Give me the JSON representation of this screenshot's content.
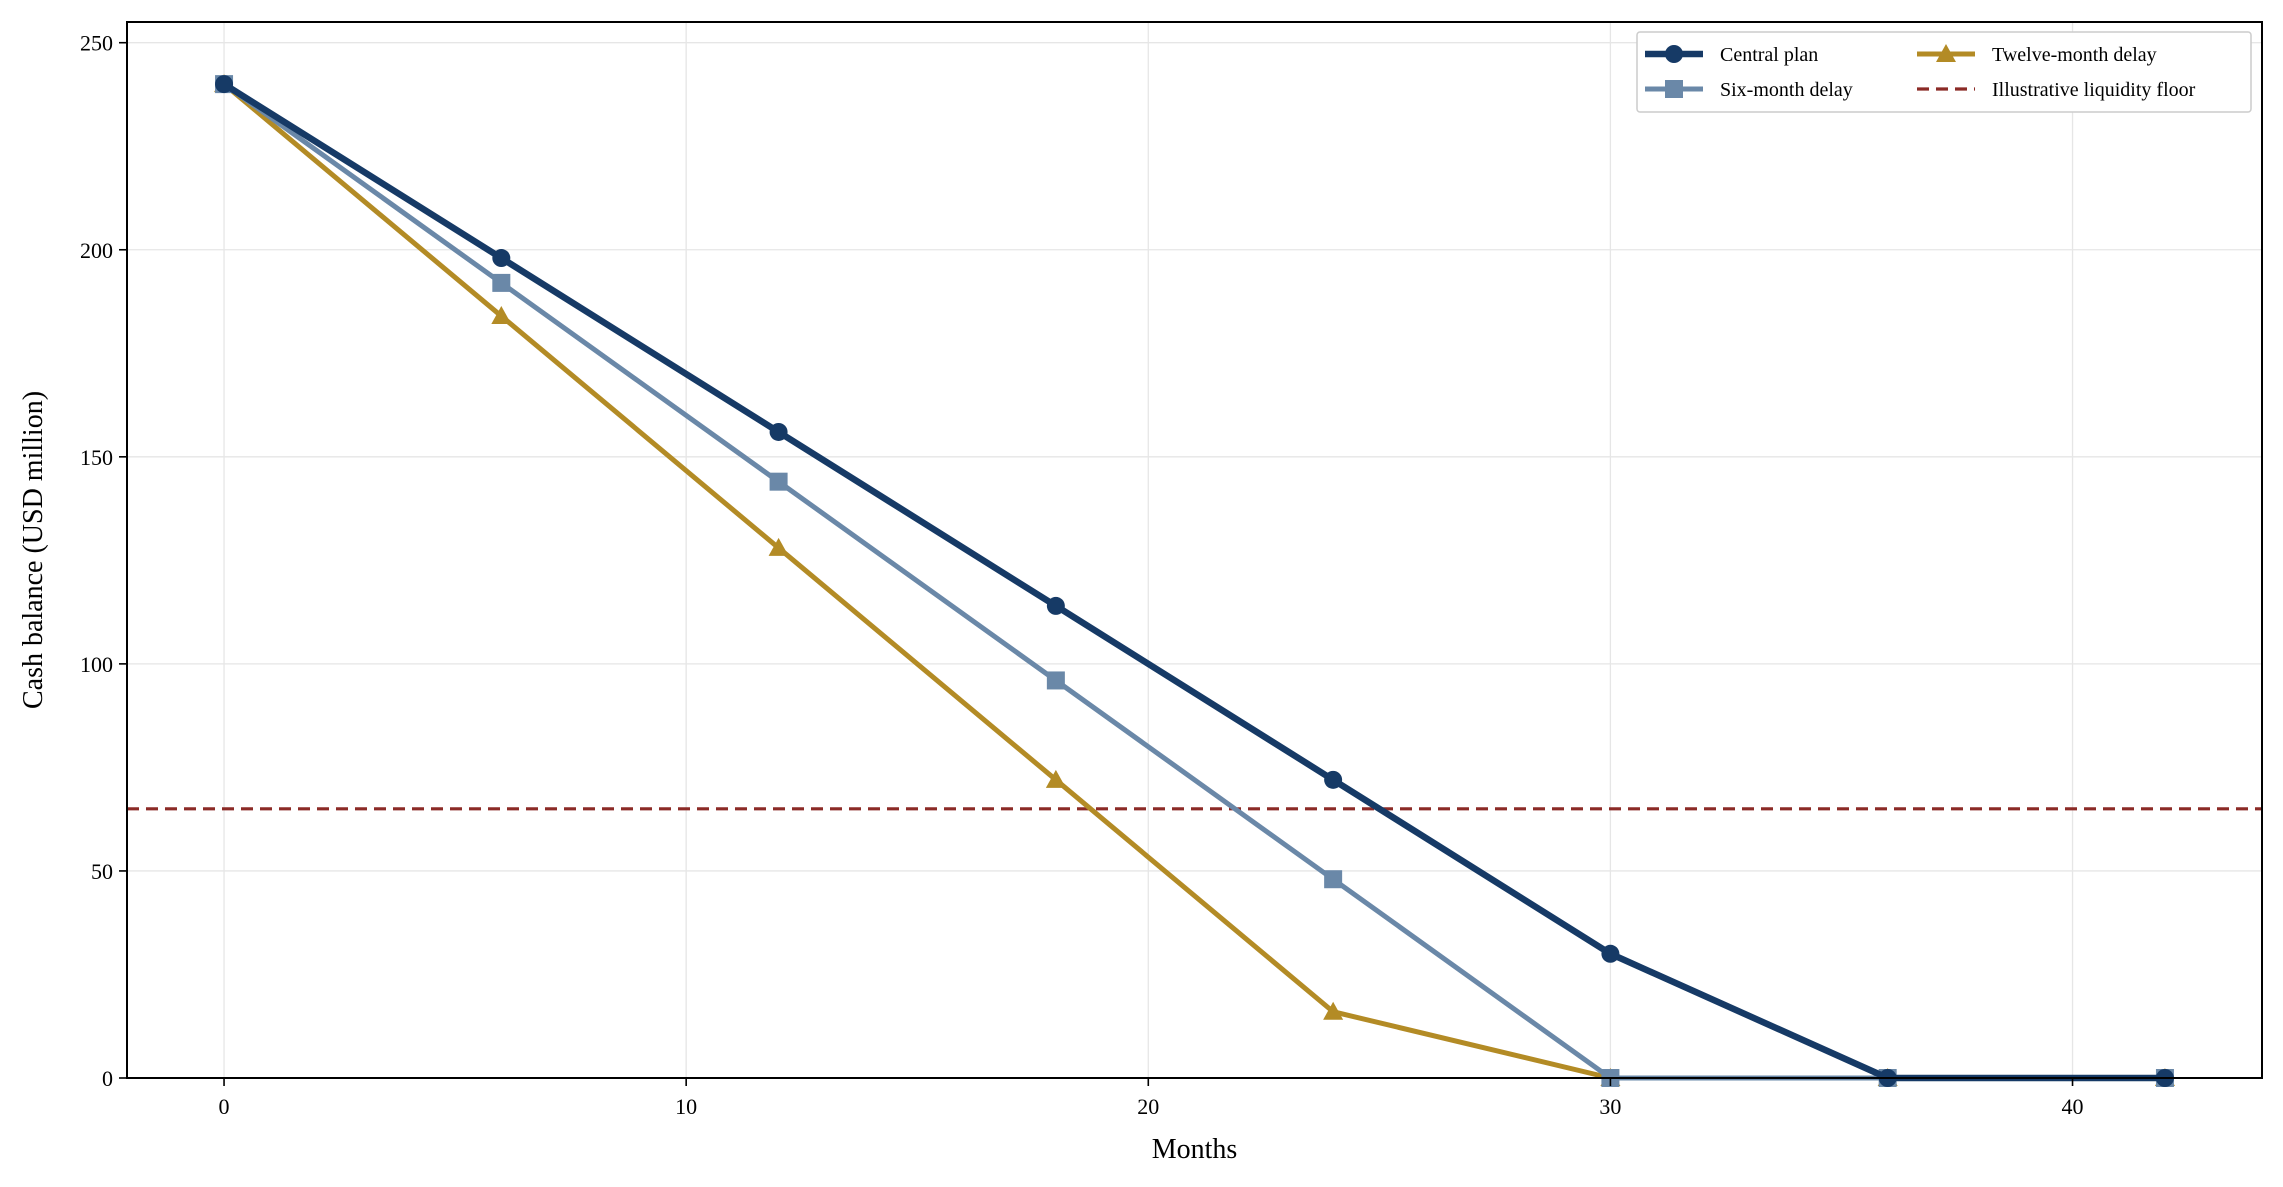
{
  "chart_data": {
    "type": "line",
    "xlabel": "Months",
    "ylabel": "Cash balance (USD million)",
    "xlim": [
      -2.1,
      44.1
    ],
    "ylim": [
      0,
      255
    ],
    "xticks": [
      0,
      10,
      20,
      30,
      40
    ],
    "yticks": [
      0,
      50,
      100,
      150,
      200,
      250
    ],
    "grid": true,
    "legend_position": "top-right",
    "series": [
      {
        "name": "Central plan",
        "color": "#163a66",
        "marker": "circle",
        "x": [
          0,
          6,
          12,
          18,
          24,
          30,
          36,
          42
        ],
        "y": [
          240,
          198,
          156,
          114,
          72,
          30,
          0,
          0
        ]
      },
      {
        "name": "Six-month delay",
        "color": "#6a88a8",
        "marker": "square",
        "x": [
          0,
          6,
          12,
          18,
          24,
          30,
          36,
          42
        ],
        "y": [
          240,
          192,
          144,
          96,
          48,
          0,
          0,
          0
        ]
      },
      {
        "name": "Twelve-month delay",
        "color": "#b38b25",
        "marker": "triangle",
        "x": [
          0,
          6,
          12,
          18,
          24,
          30,
          36,
          42
        ],
        "y": [
          240,
          184,
          128,
          72,
          16,
          0,
          0,
          0
        ]
      }
    ],
    "reference_lines": [
      {
        "name": "Illustrative liquidity floor",
        "y": 65,
        "color": "#8b2a26",
        "style": "dashed"
      }
    ]
  }
}
